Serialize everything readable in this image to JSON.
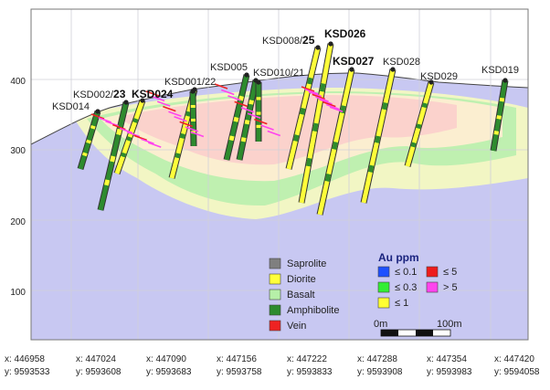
{
  "y_axis": {
    "ticks": [
      "400",
      "300",
      "200",
      "100"
    ]
  },
  "x_axis": {
    "ticks": [
      {
        "x": "x: 446958",
        "y": "y: 9593533"
      },
      {
        "x": "x: 447024",
        "y": "y: 9593608"
      },
      {
        "x": "x: 447090",
        "y": "y: 9593683"
      },
      {
        "x": "x: 447156",
        "y": "y: 9593758"
      },
      {
        "x": "x: 447222",
        "y": "y: 9593833"
      },
      {
        "x": "x: 447288",
        "y": "y: 9593908"
      },
      {
        "x": "x: 447354",
        "y": "y: 9593983"
      },
      {
        "x": "x: 447420",
        "y": "y: 9594058"
      }
    ]
  },
  "drillholes": [
    {
      "name": "KSD014",
      "bold": false
    },
    {
      "name_plain": "KSD002/",
      "name_bold": "23"
    },
    {
      "name": "KSD024",
      "bold": true
    },
    {
      "name": "KSD001/22",
      "bold": false
    },
    {
      "name": "KSD005",
      "bold": false
    },
    {
      "name": "KSD010/21",
      "bold": false
    },
    {
      "name_plain": "KSD008/",
      "name_bold": "25"
    },
    {
      "name": "KSD026",
      "bold": true
    },
    {
      "name": "KSD027",
      "bold": true
    },
    {
      "name": "KSD028",
      "bold": false
    },
    {
      "name": "KSD029",
      "bold": false
    },
    {
      "name": "KSD019",
      "bold": false
    }
  ],
  "lithology_legend": [
    {
      "label": "Saprolite",
      "color": "#7f7f7f"
    },
    {
      "label": "Diorite",
      "color": "#ffff3a"
    },
    {
      "label": "Basalt",
      "color": "#b6f0a8"
    },
    {
      "label": "Amphibolite",
      "color": "#2e8b2e"
    },
    {
      "label": "Vein",
      "color": "#ee2222"
    }
  ],
  "grade_legend": {
    "title": "Au ppm",
    "items": [
      {
        "label": "≤ 0.1",
        "color": "#1e50ff"
      },
      {
        "label": "≤ 5",
        "color": "#ee1c1c"
      },
      {
        "label": "≤ 0.3",
        "color": "#33ee33"
      },
      {
        "label": "> 5",
        "color": "#ff44ee"
      },
      {
        "label": "≤ 1",
        "color": "#ffff33"
      }
    ]
  },
  "scale_bar": {
    "start": "0m",
    "end": "100m"
  },
  "colors": {
    "background": "#c8c8f2",
    "air": "#ffffff",
    "shell_1": "#f2f6c4",
    "shell_2": "#bff0b0",
    "shell_3": "#fbeed0",
    "shell_4": "#fbd2cc",
    "diorite": "#ffff3a",
    "amphibolite": "#2e8b2e",
    "pink": "#ff44ee"
  }
}
